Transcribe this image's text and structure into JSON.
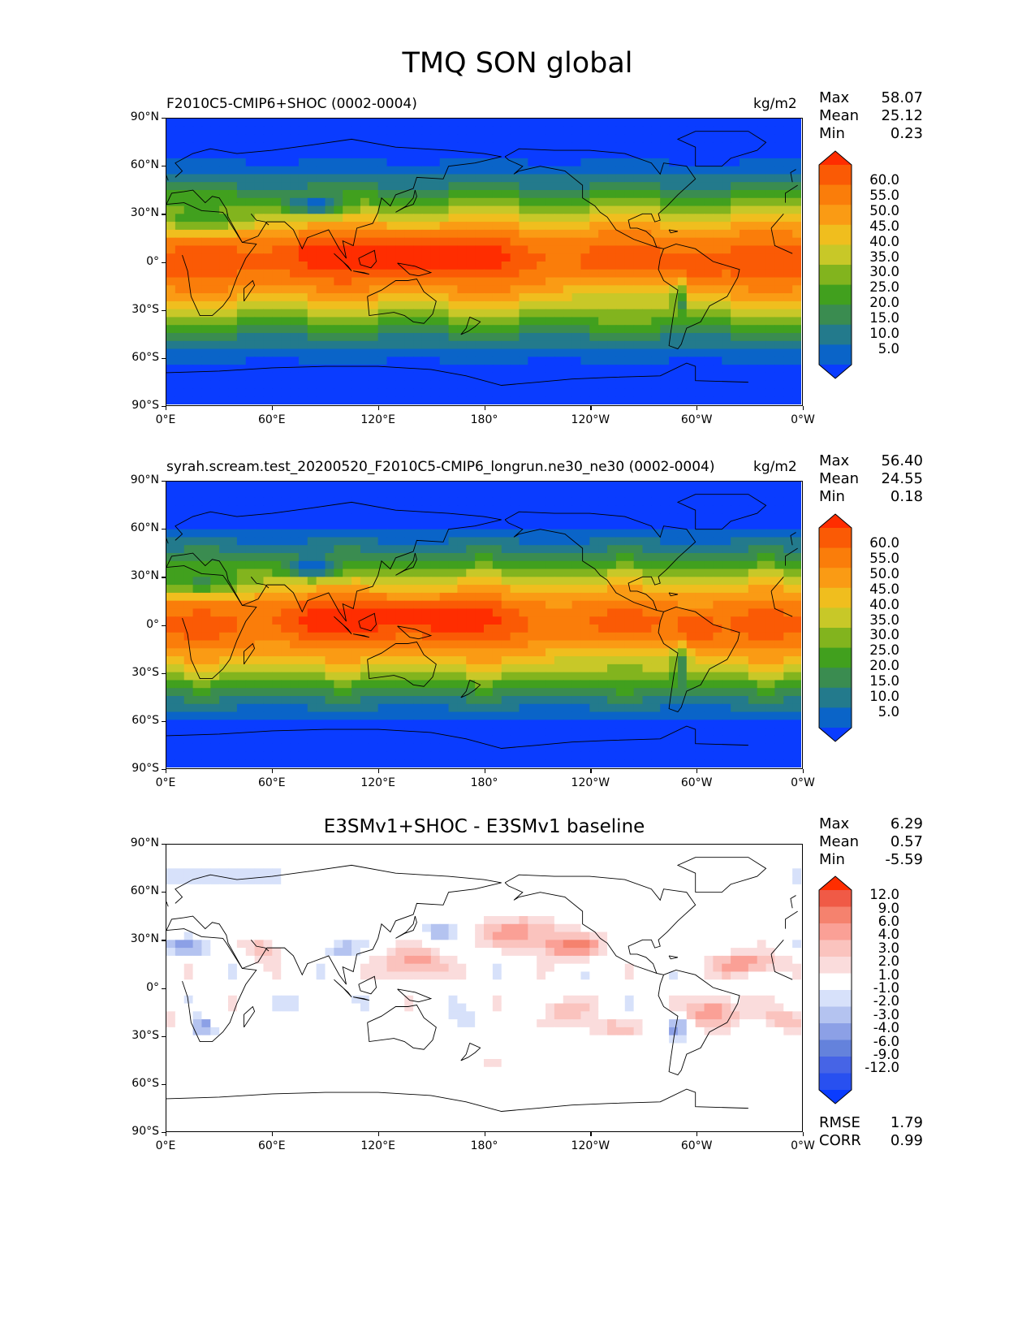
{
  "figure_title": "TMQ SON global",
  "panels": [
    {
      "title": "F2010C5-CMIP6+SHOC (0002-0004)",
      "units": "kg/m2",
      "stats": [
        {
          "label": "Max",
          "value": "58.07"
        },
        {
          "label": "Mean",
          "value": "25.12"
        },
        {
          "label": "Min",
          "value": "0.23"
        }
      ],
      "colorbar": [
        "60.0",
        "55.0",
        "50.0",
        "45.0",
        "40.0",
        "35.0",
        "30.0",
        "25.0",
        "20.0",
        "15.0",
        "10.0",
        "5.0"
      ]
    },
    {
      "title": "syrah.scream.test_20200520_F2010C5-CMIP6_longrun.ne30_ne30 (0002-0004)",
      "units": "kg/m2",
      "stats": [
        {
          "label": "Max",
          "value": "56.40"
        },
        {
          "label": "Mean",
          "value": "24.55"
        },
        {
          "label": "Min",
          "value": "0.18"
        }
      ],
      "colorbar": [
        "60.0",
        "55.0",
        "50.0",
        "45.0",
        "40.0",
        "35.0",
        "30.0",
        "25.0",
        "20.0",
        "15.0",
        "10.0",
        "5.0"
      ]
    },
    {
      "title": "E3SMv1+SHOC - E3SMv1 baseline",
      "units": "",
      "stats": [
        {
          "label": "Max",
          "value": "6.29"
        },
        {
          "label": "Mean",
          "value": "0.57"
        },
        {
          "label": "Min",
          "value": "-5.59"
        }
      ],
      "colorbar": [
        "12.0",
        "9.0",
        "6.0",
        "4.0",
        "3.0",
        "2.0",
        "1.0",
        "-1.0",
        "-2.0",
        "-3.0",
        "-4.0",
        "-6.0",
        "-9.0",
        "-12.0"
      ],
      "extra_stats": [
        {
          "label": "RMSE",
          "value": "1.79"
        },
        {
          "label": "CORR",
          "value": "0.99"
        }
      ]
    }
  ],
  "lat_labels": [
    "90°N",
    "60°N",
    "30°N",
    "0°",
    "30°S",
    "60°S",
    "90°S"
  ],
  "lon_labels": [
    "0°E",
    "60°E",
    "120°E",
    "180°",
    "120°W",
    "60°W",
    "0°W"
  ],
  "palette_abs": [
    "#0a3cff",
    "#0a64c8",
    "#237a8c",
    "#3a8c50",
    "#41a01e",
    "#82b41e",
    "#c8c828",
    "#f0be1e",
    "#fa9b14",
    "#fa7d0a",
    "#fa5a05",
    "#ff2d00"
  ],
  "palette_diff": [
    "#0a3cff",
    "#2850f0",
    "#4664e6",
    "#6482dc",
    "#8ca0e6",
    "#b4c3f0",
    "#d7e1fa",
    "#ffffff",
    "#fadcdc",
    "#fac3be",
    "#faa096",
    "#f5826e",
    "#f05a46",
    "#ff2d00"
  ]
}
